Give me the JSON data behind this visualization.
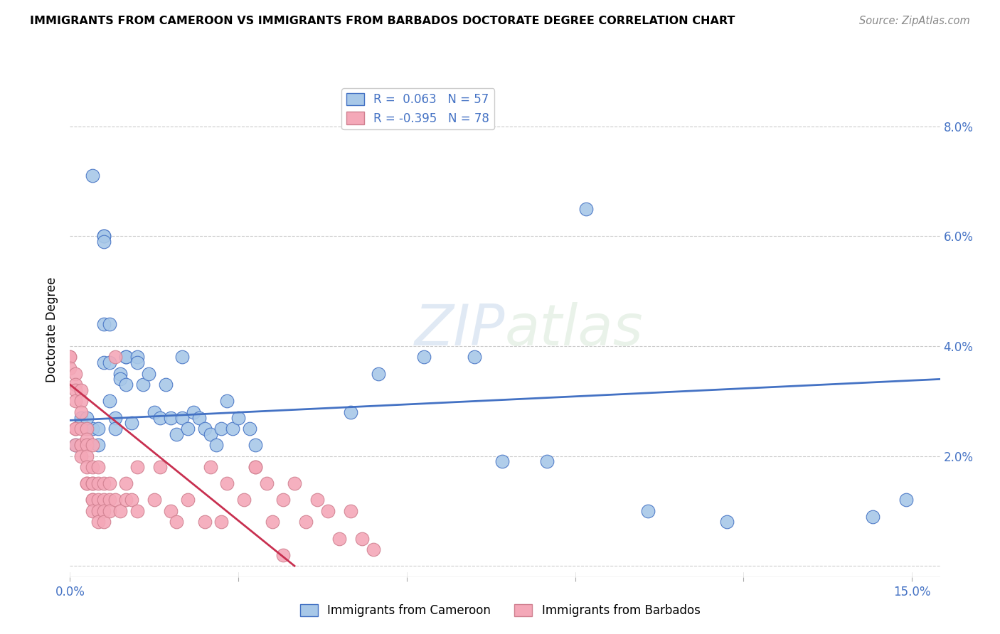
{
  "title": "IMMIGRANTS FROM CAMEROON VS IMMIGRANTS FROM BARBADOS DOCTORATE DEGREE CORRELATION CHART",
  "source": "Source: ZipAtlas.com",
  "ylabel": "Doctorate Degree",
  "y_ticks": [
    0.0,
    0.02,
    0.04,
    0.06,
    0.08
  ],
  "y_tick_labels": [
    "",
    "2.0%",
    "4.0%",
    "6.0%",
    "8.0%"
  ],
  "x_range": [
    0.0,
    0.155
  ],
  "y_range": [
    -0.002,
    0.088
  ],
  "color_cameroon": "#a8c8e8",
  "color_barbados": "#f4a8b8",
  "line_color_cameroon": "#4472c4",
  "line_color_barbados": "#c0304050",
  "cameroon_points": [
    [
      0.004,
      0.071
    ],
    [
      0.006,
      0.06
    ],
    [
      0.006,
      0.06
    ],
    [
      0.006,
      0.059
    ],
    [
      0.006,
      0.044
    ],
    [
      0.007,
      0.044
    ],
    [
      0.006,
      0.037
    ],
    [
      0.007,
      0.037
    ],
    [
      0.007,
      0.03
    ],
    [
      0.008,
      0.027
    ],
    [
      0.008,
      0.025
    ],
    [
      0.009,
      0.035
    ],
    [
      0.009,
      0.034
    ],
    [
      0.01,
      0.038
    ],
    [
      0.01,
      0.038
    ],
    [
      0.01,
      0.033
    ],
    [
      0.011,
      0.026
    ],
    [
      0.012,
      0.038
    ],
    [
      0.012,
      0.037
    ],
    [
      0.013,
      0.033
    ],
    [
      0.014,
      0.035
    ],
    [
      0.015,
      0.028
    ],
    [
      0.016,
      0.027
    ],
    [
      0.017,
      0.033
    ],
    [
      0.018,
      0.027
    ],
    [
      0.019,
      0.024
    ],
    [
      0.02,
      0.038
    ],
    [
      0.02,
      0.027
    ],
    [
      0.021,
      0.025
    ],
    [
      0.022,
      0.028
    ],
    [
      0.023,
      0.027
    ],
    [
      0.024,
      0.025
    ],
    [
      0.025,
      0.024
    ],
    [
      0.026,
      0.022
    ],
    [
      0.027,
      0.025
    ],
    [
      0.028,
      0.03
    ],
    [
      0.029,
      0.025
    ],
    [
      0.03,
      0.027
    ],
    [
      0.032,
      0.025
    ],
    [
      0.033,
      0.022
    ],
    [
      0.002,
      0.026
    ],
    [
      0.003,
      0.025
    ],
    [
      0.004,
      0.025
    ],
    [
      0.005,
      0.025
    ],
    [
      0.001,
      0.022
    ],
    [
      0.002,
      0.027
    ],
    [
      0.003,
      0.027
    ],
    [
      0.005,
      0.022
    ],
    [
      0.05,
      0.028
    ],
    [
      0.055,
      0.035
    ],
    [
      0.063,
      0.038
    ],
    [
      0.072,
      0.038
    ],
    [
      0.077,
      0.019
    ],
    [
      0.085,
      0.019
    ],
    [
      0.092,
      0.065
    ],
    [
      0.103,
      0.01
    ],
    [
      0.117,
      0.008
    ],
    [
      0.143,
      0.009
    ],
    [
      0.149,
      0.012
    ]
  ],
  "barbados_points": [
    [
      0.0,
      0.038
    ],
    [
      0.0,
      0.038
    ],
    [
      0.0,
      0.036
    ],
    [
      0.001,
      0.035
    ],
    [
      0.001,
      0.033
    ],
    [
      0.001,
      0.032
    ],
    [
      0.001,
      0.03
    ],
    [
      0.001,
      0.025
    ],
    [
      0.001,
      0.025
    ],
    [
      0.001,
      0.022
    ],
    [
      0.002,
      0.032
    ],
    [
      0.002,
      0.03
    ],
    [
      0.002,
      0.028
    ],
    [
      0.002,
      0.025
    ],
    [
      0.002,
      0.022
    ],
    [
      0.002,
      0.022
    ],
    [
      0.002,
      0.02
    ],
    [
      0.003,
      0.025
    ],
    [
      0.003,
      0.023
    ],
    [
      0.003,
      0.022
    ],
    [
      0.003,
      0.02
    ],
    [
      0.003,
      0.018
    ],
    [
      0.003,
      0.015
    ],
    [
      0.003,
      0.015
    ],
    [
      0.004,
      0.022
    ],
    [
      0.004,
      0.018
    ],
    [
      0.004,
      0.015
    ],
    [
      0.004,
      0.015
    ],
    [
      0.004,
      0.012
    ],
    [
      0.004,
      0.012
    ],
    [
      0.004,
      0.01
    ],
    [
      0.005,
      0.018
    ],
    [
      0.005,
      0.015
    ],
    [
      0.005,
      0.012
    ],
    [
      0.005,
      0.01
    ],
    [
      0.005,
      0.008
    ],
    [
      0.006,
      0.015
    ],
    [
      0.006,
      0.012
    ],
    [
      0.006,
      0.01
    ],
    [
      0.006,
      0.008
    ],
    [
      0.007,
      0.015
    ],
    [
      0.007,
      0.012
    ],
    [
      0.007,
      0.01
    ],
    [
      0.008,
      0.038
    ],
    [
      0.008,
      0.012
    ],
    [
      0.009,
      0.01
    ],
    [
      0.01,
      0.015
    ],
    [
      0.01,
      0.012
    ],
    [
      0.011,
      0.012
    ],
    [
      0.012,
      0.018
    ],
    [
      0.012,
      0.01
    ],
    [
      0.015,
      0.012
    ],
    [
      0.016,
      0.018
    ],
    [
      0.018,
      0.01
    ],
    [
      0.019,
      0.008
    ],
    [
      0.021,
      0.012
    ],
    [
      0.024,
      0.008
    ],
    [
      0.025,
      0.018
    ],
    [
      0.027,
      0.008
    ],
    [
      0.028,
      0.015
    ],
    [
      0.031,
      0.012
    ],
    [
      0.033,
      0.018
    ],
    [
      0.033,
      0.018
    ],
    [
      0.035,
      0.015
    ],
    [
      0.036,
      0.008
    ],
    [
      0.038,
      0.012
    ],
    [
      0.04,
      0.015
    ],
    [
      0.042,
      0.008
    ],
    [
      0.044,
      0.012
    ],
    [
      0.046,
      0.01
    ],
    [
      0.048,
      0.005
    ],
    [
      0.05,
      0.01
    ],
    [
      0.052,
      0.005
    ],
    [
      0.054,
      0.003
    ],
    [
      0.038,
      0.002
    ]
  ],
  "cameroon_line_x": [
    0.0,
    0.155
  ],
  "cameroon_line_y": [
    0.0265,
    0.034
  ],
  "barbados_line_x": [
    0.0,
    0.04
  ],
  "barbados_line_y": [
    0.033,
    0.0
  ]
}
